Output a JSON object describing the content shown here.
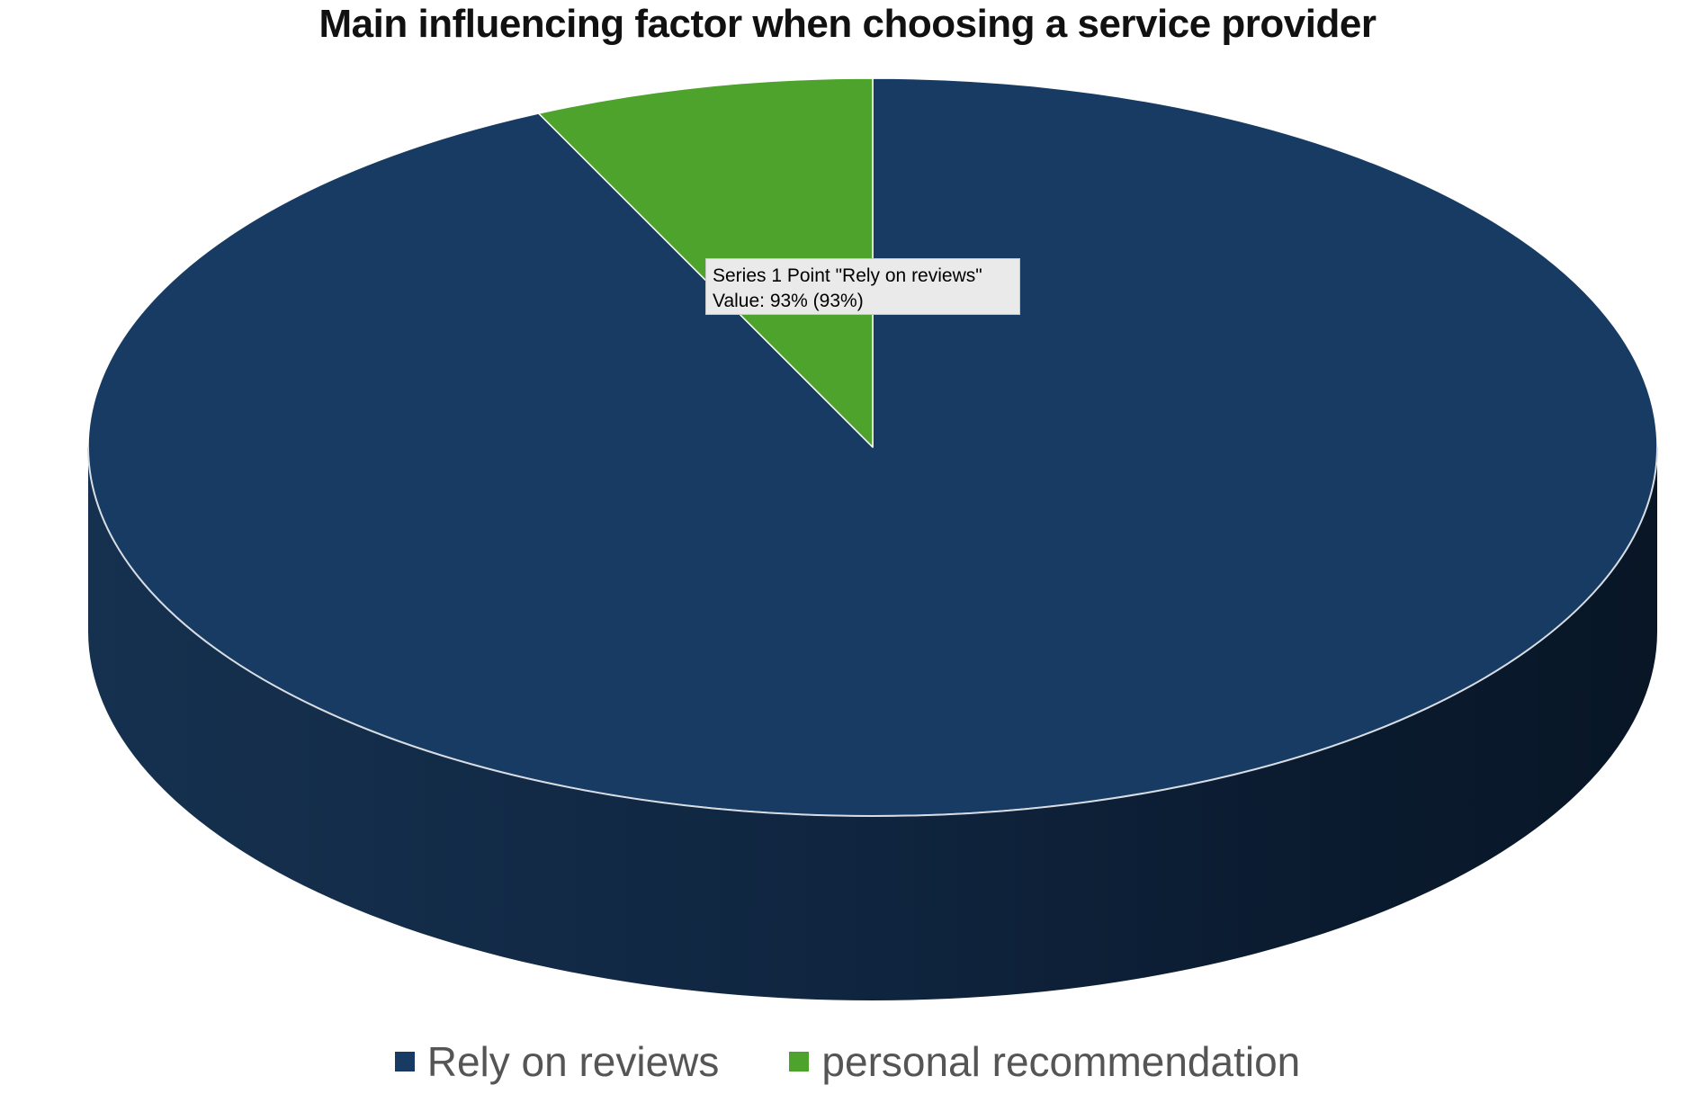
{
  "chart_data": {
    "type": "pie",
    "title": "Main influencing factor when choosing a service provider",
    "categories": [
      "Rely on reviews",
      "personal recommendation"
    ],
    "series": [
      {
        "name": "Series 1",
        "values": [
          93,
          7
        ]
      }
    ],
    "unit": "%",
    "colors": [
      "#173b63",
      "#4ea32d"
    ],
    "legend_position": "bottom",
    "style": "3d",
    "tooltip": {
      "line1": "Series 1 Point \"Rely on reviews\"",
      "line2": "Value: 93% (93%)"
    }
  }
}
